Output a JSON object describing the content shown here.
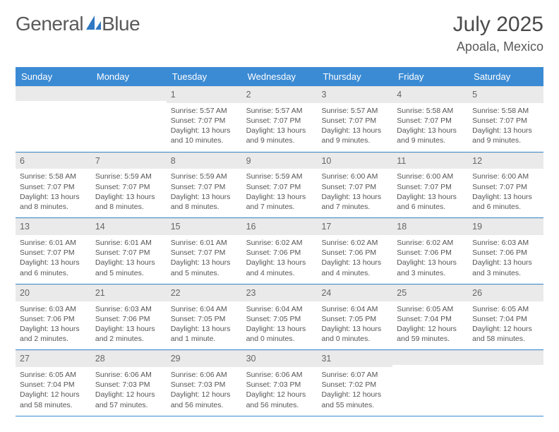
{
  "logo": {
    "text_left": "General",
    "text_right": "Blue",
    "icon_color": "#2f78c2"
  },
  "header": {
    "month_title": "July 2025",
    "location": "Apoala, Mexico"
  },
  "colors": {
    "header_bar": "#3b8bd4",
    "header_text": "#ffffff",
    "daynum_bg": "#eaeaea",
    "rule": "#3b8bd4",
    "body_text": "#555555"
  },
  "weekdays": [
    "Sunday",
    "Monday",
    "Tuesday",
    "Wednesday",
    "Thursday",
    "Friday",
    "Saturday"
  ],
  "weeks": [
    [
      null,
      null,
      {
        "n": "1",
        "sr": "5:57 AM",
        "ss": "7:07 PM",
        "dl": "13 hours and 10 minutes."
      },
      {
        "n": "2",
        "sr": "5:57 AM",
        "ss": "7:07 PM",
        "dl": "13 hours and 9 minutes."
      },
      {
        "n": "3",
        "sr": "5:57 AM",
        "ss": "7:07 PM",
        "dl": "13 hours and 9 minutes."
      },
      {
        "n": "4",
        "sr": "5:58 AM",
        "ss": "7:07 PM",
        "dl": "13 hours and 9 minutes."
      },
      {
        "n": "5",
        "sr": "5:58 AM",
        "ss": "7:07 PM",
        "dl": "13 hours and 9 minutes."
      }
    ],
    [
      {
        "n": "6",
        "sr": "5:58 AM",
        "ss": "7:07 PM",
        "dl": "13 hours and 8 minutes."
      },
      {
        "n": "7",
        "sr": "5:59 AM",
        "ss": "7:07 PM",
        "dl": "13 hours and 8 minutes."
      },
      {
        "n": "8",
        "sr": "5:59 AM",
        "ss": "7:07 PM",
        "dl": "13 hours and 8 minutes."
      },
      {
        "n": "9",
        "sr": "5:59 AM",
        "ss": "7:07 PM",
        "dl": "13 hours and 7 minutes."
      },
      {
        "n": "10",
        "sr": "6:00 AM",
        "ss": "7:07 PM",
        "dl": "13 hours and 7 minutes."
      },
      {
        "n": "11",
        "sr": "6:00 AM",
        "ss": "7:07 PM",
        "dl": "13 hours and 6 minutes."
      },
      {
        "n": "12",
        "sr": "6:00 AM",
        "ss": "7:07 PM",
        "dl": "13 hours and 6 minutes."
      }
    ],
    [
      {
        "n": "13",
        "sr": "6:01 AM",
        "ss": "7:07 PM",
        "dl": "13 hours and 6 minutes."
      },
      {
        "n": "14",
        "sr": "6:01 AM",
        "ss": "7:07 PM",
        "dl": "13 hours and 5 minutes."
      },
      {
        "n": "15",
        "sr": "6:01 AM",
        "ss": "7:07 PM",
        "dl": "13 hours and 5 minutes."
      },
      {
        "n": "16",
        "sr": "6:02 AM",
        "ss": "7:06 PM",
        "dl": "13 hours and 4 minutes."
      },
      {
        "n": "17",
        "sr": "6:02 AM",
        "ss": "7:06 PM",
        "dl": "13 hours and 4 minutes."
      },
      {
        "n": "18",
        "sr": "6:02 AM",
        "ss": "7:06 PM",
        "dl": "13 hours and 3 minutes."
      },
      {
        "n": "19",
        "sr": "6:03 AM",
        "ss": "7:06 PM",
        "dl": "13 hours and 3 minutes."
      }
    ],
    [
      {
        "n": "20",
        "sr": "6:03 AM",
        "ss": "7:06 PM",
        "dl": "13 hours and 2 minutes."
      },
      {
        "n": "21",
        "sr": "6:03 AM",
        "ss": "7:06 PM",
        "dl": "13 hours and 2 minutes."
      },
      {
        "n": "22",
        "sr": "6:04 AM",
        "ss": "7:05 PM",
        "dl": "13 hours and 1 minute."
      },
      {
        "n": "23",
        "sr": "6:04 AM",
        "ss": "7:05 PM",
        "dl": "13 hours and 0 minutes."
      },
      {
        "n": "24",
        "sr": "6:04 AM",
        "ss": "7:05 PM",
        "dl": "13 hours and 0 minutes."
      },
      {
        "n": "25",
        "sr": "6:05 AM",
        "ss": "7:04 PM",
        "dl": "12 hours and 59 minutes."
      },
      {
        "n": "26",
        "sr": "6:05 AM",
        "ss": "7:04 PM",
        "dl": "12 hours and 58 minutes."
      }
    ],
    [
      {
        "n": "27",
        "sr": "6:05 AM",
        "ss": "7:04 PM",
        "dl": "12 hours and 58 minutes."
      },
      {
        "n": "28",
        "sr": "6:06 AM",
        "ss": "7:03 PM",
        "dl": "12 hours and 57 minutes."
      },
      {
        "n": "29",
        "sr": "6:06 AM",
        "ss": "7:03 PM",
        "dl": "12 hours and 56 minutes."
      },
      {
        "n": "30",
        "sr": "6:06 AM",
        "ss": "7:03 PM",
        "dl": "12 hours and 56 minutes."
      },
      {
        "n": "31",
        "sr": "6:07 AM",
        "ss": "7:02 PM",
        "dl": "12 hours and 55 minutes."
      },
      null,
      null
    ]
  ],
  "labels": {
    "sunrise": "Sunrise:",
    "sunset": "Sunset:",
    "daylight": "Daylight:"
  }
}
